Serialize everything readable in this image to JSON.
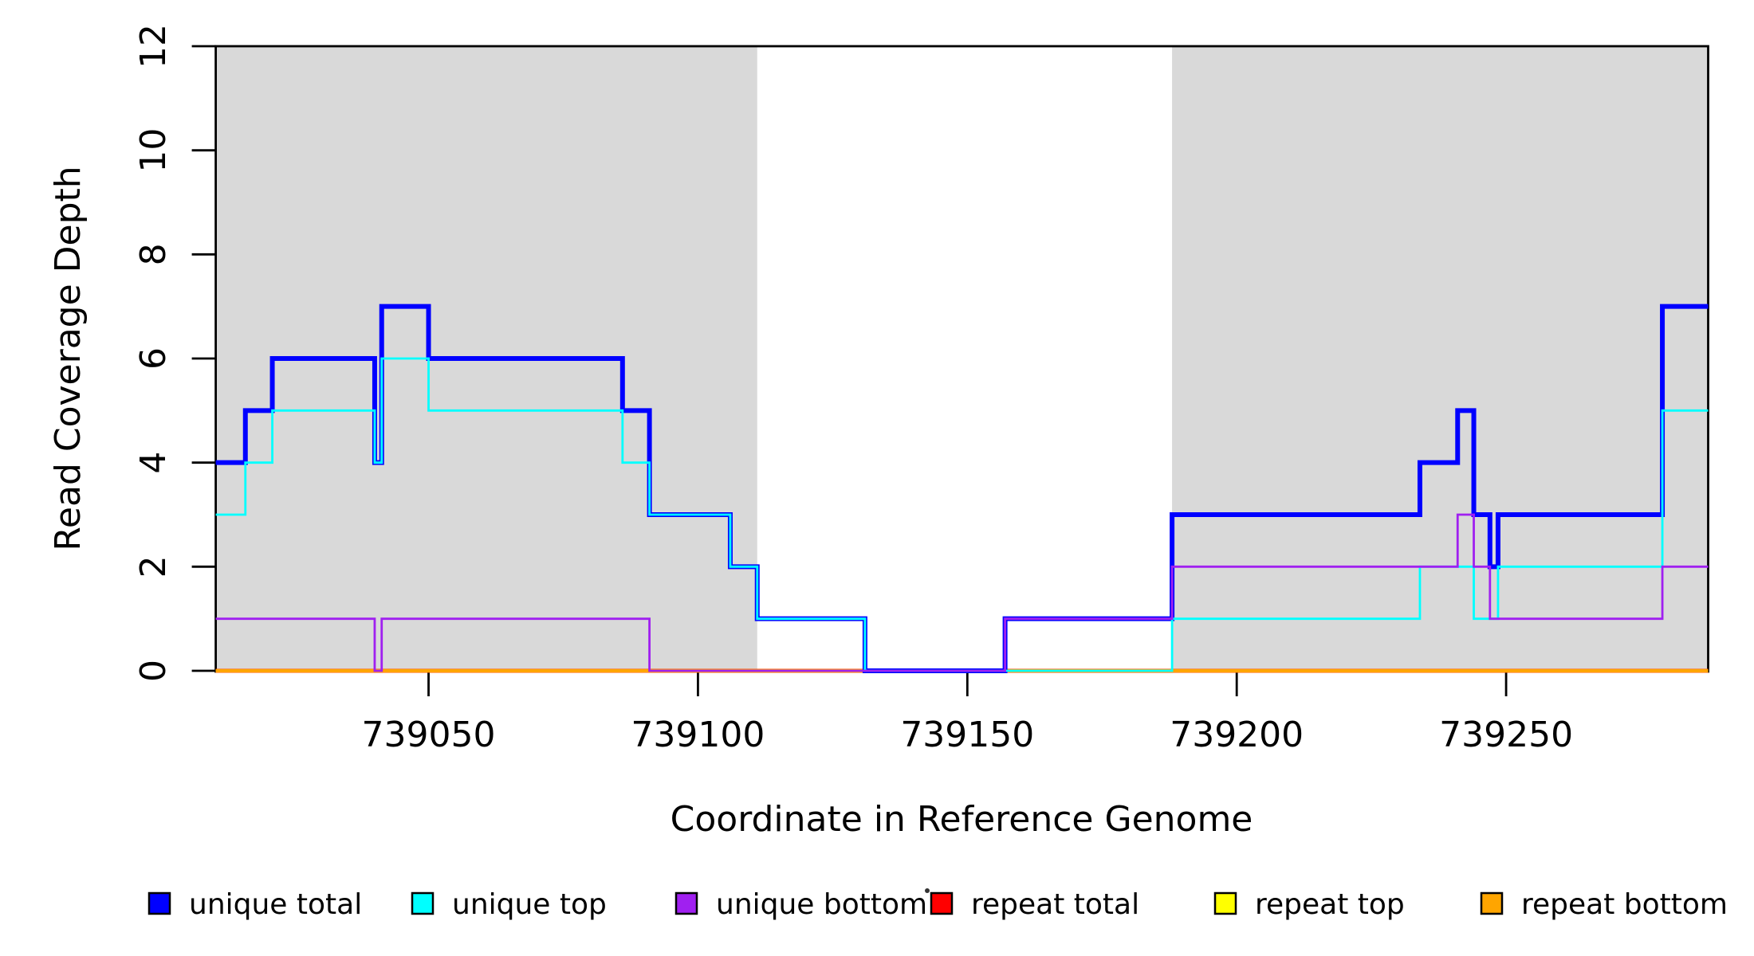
{
  "chart_data": {
    "type": "line",
    "variant": "step",
    "title": "",
    "xlabel": "Coordinate in Reference Genome",
    "ylabel": "Read Coverage Depth",
    "xlim": [
      739010.5,
      739287.5
    ],
    "ylim": [
      0,
      12
    ],
    "x_ticks": [
      739050,
      739100,
      739150,
      739200,
      739250
    ],
    "y_ticks": [
      0,
      2,
      4,
      6,
      8,
      10,
      12
    ],
    "grid": false,
    "shaded_regions": {
      "color": "#d9d9d9",
      "intervals": [
        [
          739010.5,
          739111
        ],
        [
          739188,
          739287.5
        ]
      ]
    },
    "series": [
      {
        "name": "repeat total",
        "color": "#ff0000",
        "line_width": 5,
        "steps": [
          [
            739010.5,
            0
          ]
        ]
      },
      {
        "name": "repeat top",
        "color": "#ffff00",
        "line_width": 3.5,
        "steps": [
          [
            739010.5,
            0
          ]
        ]
      },
      {
        "name": "repeat bottom",
        "color": "#ffa500",
        "line_width": 4.5,
        "steps": [
          [
            739010.5,
            0
          ]
        ]
      },
      {
        "name": "unique total",
        "color": "#0000ff",
        "line_width": 6,
        "steps": [
          [
            739010.5,
            4
          ],
          [
            739016,
            5
          ],
          [
            739021,
            6
          ],
          [
            739040,
            4
          ],
          [
            739041.3,
            7
          ],
          [
            739050,
            6
          ],
          [
            739086,
            5
          ],
          [
            739091,
            3
          ],
          [
            739106,
            2
          ],
          [
            739111,
            1
          ],
          [
            739131,
            0
          ],
          [
            739157,
            1
          ],
          [
            739188,
            3
          ],
          [
            739234,
            4
          ],
          [
            739241,
            5
          ],
          [
            739244,
            3
          ],
          [
            739247,
            2
          ],
          [
            739248.5,
            3
          ],
          [
            739279,
            7
          ]
        ]
      },
      {
        "name": "unique top",
        "color": "#00ffff",
        "line_width": 2.8,
        "steps": [
          [
            739010.5,
            3
          ],
          [
            739016,
            4
          ],
          [
            739021,
            5
          ],
          [
            739040,
            4
          ],
          [
            739041.3,
            6
          ],
          [
            739050,
            5
          ],
          [
            739086,
            4
          ],
          [
            739091,
            3
          ],
          [
            739106,
            2
          ],
          [
            739111,
            1
          ],
          [
            739131,
            0
          ],
          [
            739188,
            1
          ],
          [
            739234,
            2
          ],
          [
            739244,
            1
          ],
          [
            739248.5,
            2
          ],
          [
            739279,
            5
          ]
        ]
      },
      {
        "name": "unique bottom",
        "color": "#a020f0",
        "line_width": 2.8,
        "steps": [
          [
            739010.5,
            1
          ],
          [
            739040,
            0
          ],
          [
            739041.3,
            1
          ],
          [
            739091,
            0
          ],
          [
            739157,
            1
          ],
          [
            739188,
            2
          ],
          [
            739241,
            3
          ],
          [
            739244,
            2
          ],
          [
            739247,
            1
          ],
          [
            739279,
            2
          ]
        ]
      }
    ],
    "legend": [
      {
        "label": "unique total",
        "color": "#0000ff"
      },
      {
        "label": "unique top",
        "color": "#00ffff"
      },
      {
        "label": "unique bottom",
        "color": "#a020f0"
      },
      {
        "label": "repeat total",
        "color": "#ff0000"
      },
      {
        "label": "repeat top",
        "color": "#ffff00"
      },
      {
        "label": "repeat bottom",
        "color": "#ffa500"
      }
    ],
    "legend_position": "bottom"
  }
}
